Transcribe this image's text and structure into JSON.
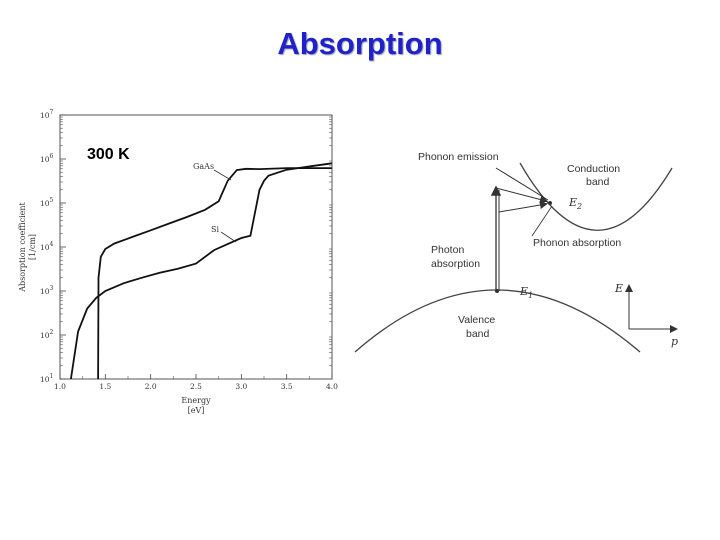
{
  "title": "Absorption",
  "temperature_label": "300 K",
  "chart_data": {
    "type": "line",
    "title": "",
    "xlabel": "Energy",
    "xunit": "[eV]",
    "ylabel": "Absorption coefficient",
    "yunit": "[1/cm]",
    "xlim": [
      1.0,
      4.0
    ],
    "ylog": true,
    "ylim_exponent": [
      1,
      7
    ],
    "x_ticks": [
      "1.0",
      "1.5",
      "2.0",
      "2.5",
      "3.0",
      "3.5",
      "4.0"
    ],
    "y_ticks": [
      {
        "base": "10",
        "exp": "1"
      },
      {
        "base": "10",
        "exp": "2"
      },
      {
        "base": "10",
        "exp": "3"
      },
      {
        "base": "10",
        "exp": "4"
      },
      {
        "base": "10",
        "exp": "5"
      },
      {
        "base": "10",
        "exp": "6"
      },
      {
        "base": "10",
        "exp": "7"
      }
    ],
    "series": [
      {
        "name": "GaAs",
        "x": [
          1.42,
          1.425,
          1.45,
          1.5,
          1.6,
          1.8,
          2.0,
          2.2,
          2.4,
          2.6,
          2.75,
          2.85,
          2.95,
          3.05,
          3.2,
          3.5,
          3.8,
          4.0
        ],
        "y": [
          10,
          2000,
          6000,
          9000,
          12000,
          17000,
          24000,
          34000,
          48000,
          70000,
          110000,
          320000,
          560000,
          600000,
          590000,
          620000,
          620000,
          620000
        ]
      },
      {
        "name": "Si",
        "x": [
          1.12,
          1.2,
          1.3,
          1.4,
          1.5,
          1.7,
          1.9,
          2.1,
          2.3,
          2.5,
          2.7,
          3.0,
          3.1,
          3.2,
          3.25,
          3.3,
          3.5,
          3.8,
          4.0
        ],
        "y": [
          10,
          120,
          400,
          700,
          1000,
          1500,
          2000,
          2600,
          3200,
          4200,
          8500,
          16000,
          18000,
          200000,
          320000,
          420000,
          570000,
          700000,
          800000
        ]
      }
    ]
  },
  "band_diagram": {
    "labels": {
      "phonon_emission": "Phonon emission",
      "conduction_band_1": "Conduction",
      "conduction_band_2": "band",
      "phonon_absorption": "Phonon absorption",
      "photon_absorption_1": "Photon",
      "photon_absorption_2": "absorption",
      "valence_band_1": "Valence",
      "valence_band_2": "band",
      "e1": "E",
      "e1_sub": "1",
      "e2": "E",
      "e2_sub": "2",
      "axis_e": "E",
      "axis_p": "p"
    }
  }
}
